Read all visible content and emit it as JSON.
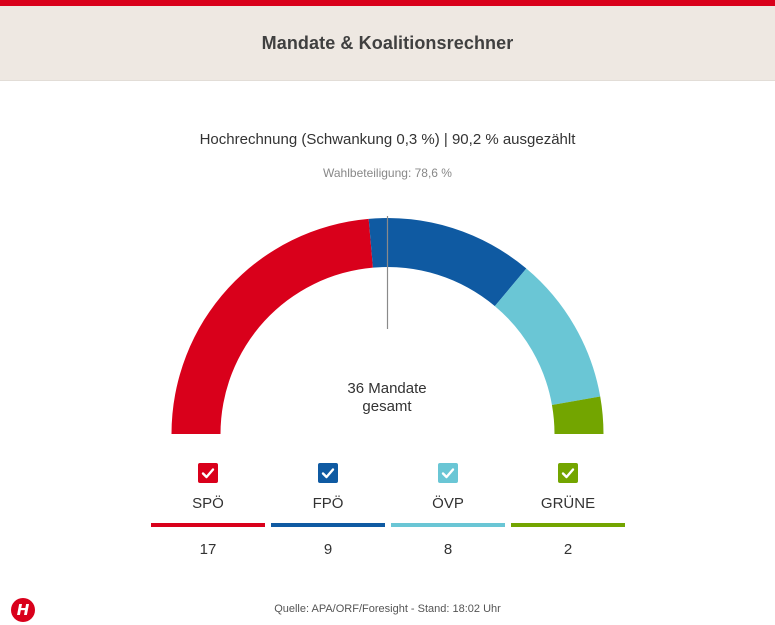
{
  "header": {
    "title": "Mandate & Koalitionsrechner"
  },
  "subtitle": "Hochrechnung (Schwankung 0,3 %) | 90,2 % ausgezählt",
  "turnout": "Wahlbeteiligung: 78,6 %",
  "center": {
    "line1": "36 Mandate",
    "line2": "gesamt"
  },
  "footer": {
    "source": "Quelle: APA/ORF/Foresight - Stand: 18:02 Uhr"
  },
  "logo": {
    "letter": "H"
  },
  "parties": [
    {
      "name": "SPÖ",
      "seats": "17",
      "color": "#d9001b",
      "checked": true
    },
    {
      "name": "FPÖ",
      "seats": "9",
      "color": "#0f5aa2",
      "checked": true
    },
    {
      "name": "ÖVP",
      "seats": "8",
      "color": "#6ac6d5",
      "checked": true
    },
    {
      "name": "GRÜNE",
      "seats": "2",
      "color": "#73a500",
      "checked": true
    }
  ],
  "chart_data": {
    "type": "pie",
    "variant": "semicircle-parliament",
    "total_seats": 36,
    "majority_marker": true,
    "categories": [
      "SPÖ",
      "FPÖ",
      "ÖVP",
      "GRÜNE"
    ],
    "values": [
      17,
      9,
      8,
      2
    ],
    "colors": [
      "#d9001b",
      "#0f5aa2",
      "#6ac6d5",
      "#73a500"
    ]
  }
}
